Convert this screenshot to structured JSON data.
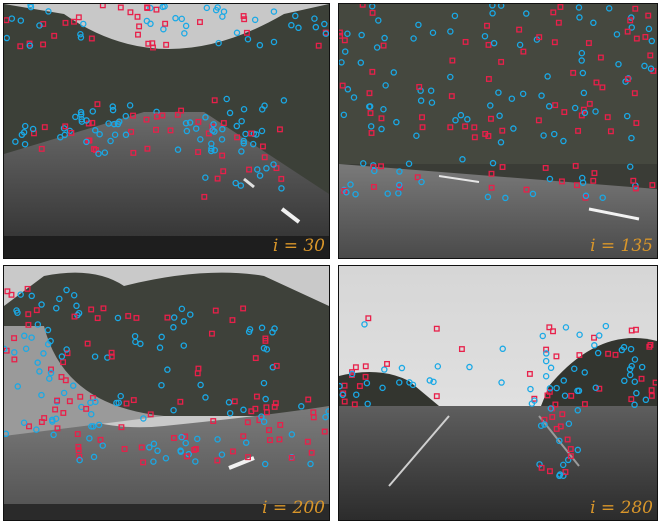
{
  "colors": {
    "marker_cyan": "#1aa9e6",
    "marker_red": "#e8204a",
    "label": "#d9962a"
  },
  "panels": [
    {
      "id": "frame-30",
      "label": "i = 30",
      "scene": "road-trees"
    },
    {
      "id": "frame-135",
      "label": "i = 135",
      "scene": "dense-forest"
    },
    {
      "id": "frame-200",
      "label": "i = 200",
      "scene": "curved-road"
    },
    {
      "id": "frame-280",
      "label": "i = 280",
      "scene": "open-sky"
    }
  ]
}
